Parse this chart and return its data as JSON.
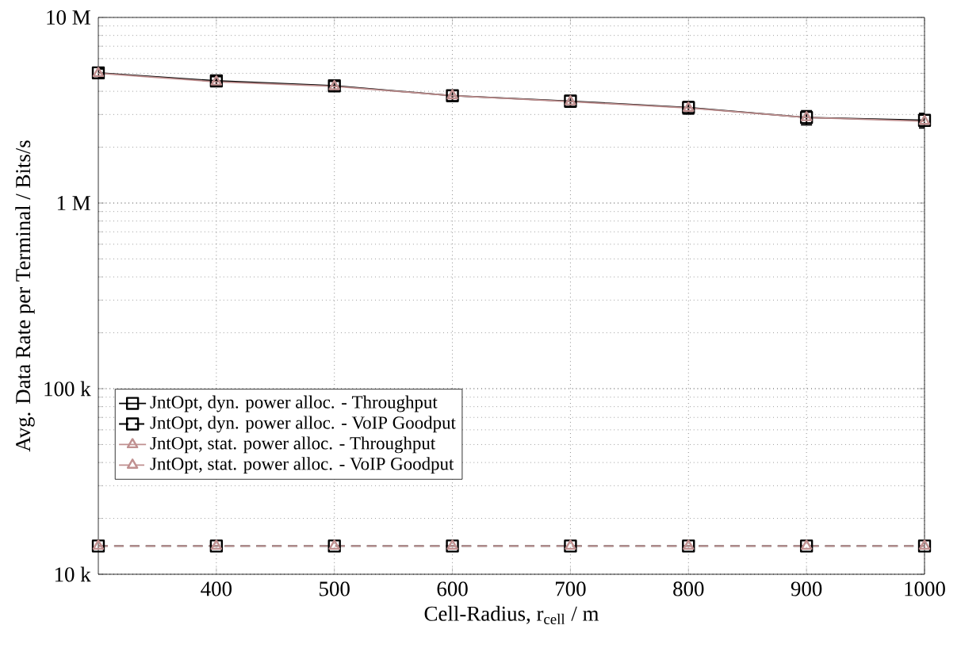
{
  "chart_data": {
    "type": "line",
    "xlabel": "Cell-Radius, r$_{cell}$ / m",
    "ylabel": "Avg. Data Rate per Terminal / Bits/s",
    "x": [
      300,
      400,
      500,
      600,
      700,
      800,
      900,
      1000
    ],
    "series": [
      {
        "name": "JntOpt, dyn. power alloc. - Throughput",
        "color": "#000000",
        "marker": "square",
        "line_style": "solid",
        "values": [
          5030000,
          4550000,
          4280000,
          3790000,
          3540000,
          3270000,
          2890000,
          2790000
        ],
        "errors": [
          250000,
          250000,
          250000,
          250000,
          250000,
          250000,
          250000,
          250000
        ]
      },
      {
        "name": "JntOpt, dyn. power alloc. - VoIP Goodput",
        "color": "#000000",
        "marker": "square",
        "line_style": "dashed",
        "values": [
          14200,
          14200,
          14200,
          14200,
          14200,
          14200,
          14200,
          14200
        ]
      },
      {
        "name": "JntOpt, stat. power alloc. - Throughput",
        "color": "#c09090",
        "marker": "triangle",
        "line_style": "solid",
        "values": [
          5000000,
          4500000,
          4250000,
          3790000,
          3520000,
          3250000,
          2890000,
          2760000
        ]
      },
      {
        "name": "JntOpt, stat. power alloc. - VoIP Goodput",
        "color": "#c09090",
        "marker": "triangle",
        "line_style": "dashed",
        "values": [
          14200,
          14200,
          14200,
          14200,
          14200,
          14200,
          14200,
          14200
        ]
      }
    ],
    "xlim": [
      300,
      1000
    ],
    "xticks": [
      400,
      500,
      600,
      700,
      800,
      900,
      1000
    ],
    "ylim": [
      10000,
      10000000
    ],
    "yticks": [
      {
        "value": 10000,
        "label": "10 k"
      },
      {
        "value": 100000,
        "label": "100 k"
      },
      {
        "value": 1000000,
        "label": "1 M"
      },
      {
        "value": 10000000,
        "label": "10 M"
      }
    ],
    "log": "y",
    "grid": true,
    "legend": "bottom left"
  }
}
